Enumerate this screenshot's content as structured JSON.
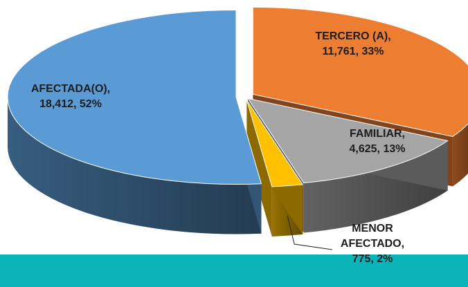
{
  "chart_data": {
    "type": "pie3d",
    "values": [
      11761,
      4625,
      775,
      18412
    ],
    "value_labels": [
      [
        "TERCERO (A),",
        "11,761, 33%"
      ],
      [
        "FAMILIAR,",
        "4,625, 13%"
      ],
      [
        "MENOR",
        "AFECTADO,",
        "775, 2%"
      ],
      [
        "AFECTADA(O),",
        "18,412, 52%"
      ]
    ],
    "colors": [
      "#ed7d31",
      "#a5a5a5",
      "#ffc000",
      "#5b9bd5"
    ]
  }
}
